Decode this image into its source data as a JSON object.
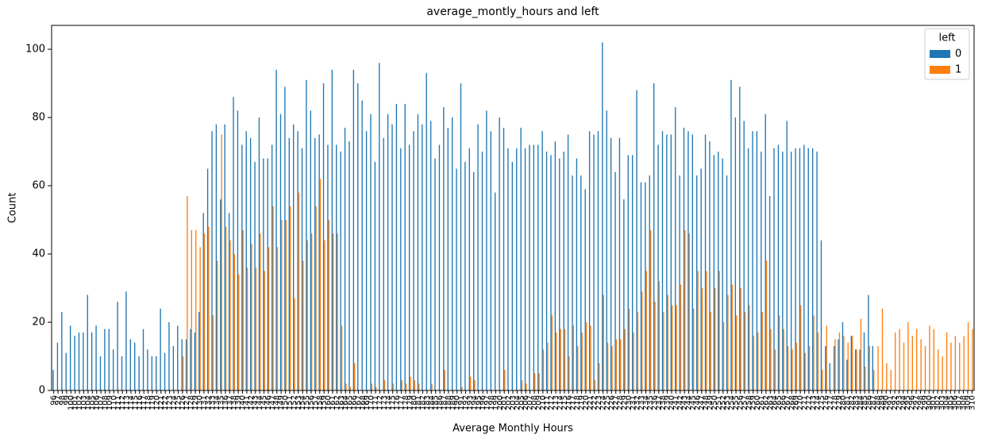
{
  "chart_data": {
    "type": "bar",
    "title": "average_montly_hours and left",
    "x_label": "Average Monthly Hours",
    "y_label": "Count",
    "legend_title": "left",
    "legend_position": "upper right",
    "ylim": [
      0,
      107
    ],
    "yticks": [
      0,
      20,
      40,
      60,
      80,
      100
    ],
    "categories": [
      96,
      97,
      98,
      99,
      100,
      101,
      102,
      103,
      104,
      105,
      106,
      107,
      108,
      109,
      110,
      111,
      112,
      113,
      114,
      115,
      116,
      117,
      118,
      119,
      120,
      121,
      122,
      123,
      124,
      125,
      126,
      127,
      128,
      129,
      130,
      131,
      132,
      133,
      134,
      135,
      136,
      137,
      138,
      139,
      140,
      141,
      142,
      143,
      144,
      145,
      146,
      147,
      148,
      149,
      150,
      151,
      152,
      153,
      154,
      155,
      156,
      157,
      158,
      159,
      160,
      161,
      162,
      163,
      164,
      165,
      166,
      167,
      168,
      169,
      170,
      171,
      172,
      173,
      174,
      175,
      176,
      177,
      178,
      179,
      180,
      181,
      182,
      183,
      184,
      185,
      186,
      187,
      188,
      189,
      190,
      191,
      192,
      193,
      194,
      195,
      196,
      197,
      198,
      199,
      200,
      201,
      202,
      203,
      204,
      205,
      206,
      207,
      208,
      209,
      210,
      211,
      212,
      213,
      214,
      215,
      216,
      217,
      218,
      219,
      220,
      221,
      222,
      223,
      224,
      225,
      226,
      227,
      228,
      229,
      230,
      231,
      232,
      233,
      234,
      235,
      236,
      237,
      238,
      239,
      240,
      241,
      242,
      243,
      244,
      245,
      246,
      247,
      248,
      249,
      250,
      251,
      252,
      253,
      254,
      255,
      256,
      257,
      258,
      259,
      260,
      261,
      262,
      263,
      264,
      265,
      266,
      267,
      268,
      269,
      270,
      271,
      272,
      273,
      274,
      275,
      276,
      277,
      278,
      279,
      280,
      281,
      282,
      283,
      284,
      285,
      286,
      287,
      288,
      289,
      290,
      291,
      292,
      293,
      294,
      295,
      296,
      297,
      298,
      299,
      300,
      301,
      302,
      303,
      304,
      305,
      306,
      307,
      308,
      309,
      310
    ],
    "series": [
      {
        "name": "0",
        "color": "#1f77b4",
        "values": [
          6,
          14,
          23,
          11,
          19,
          16,
          17,
          17,
          28,
          17,
          19,
          10,
          18,
          18,
          12,
          26,
          10,
          29,
          15,
          14,
          10,
          18,
          12,
          10,
          10,
          24,
          11,
          20,
          13,
          19,
          15,
          15,
          18,
          17,
          23,
          52,
          65,
          76,
          78,
          56,
          78,
          52,
          86,
          82,
          72,
          76,
          74,
          67,
          80,
          68,
          68,
          72,
          94,
          81,
          89,
          74,
          78,
          76,
          71,
          91,
          82,
          74,
          75,
          90,
          72,
          94,
          72,
          70,
          77,
          73,
          94,
          90,
          85,
          76,
          81,
          67,
          96,
          74,
          81,
          78,
          84,
          71,
          84,
          72,
          76,
          81,
          78,
          93,
          79,
          68,
          72,
          83,
          77,
          80,
          65,
          90,
          67,
          71,
          64,
          78,
          70,
          82,
          76,
          58,
          80,
          77,
          71,
          67,
          71,
          77,
          71,
          72,
          72,
          72,
          76,
          70,
          69,
          73,
          68,
          70,
          75,
          63,
          68,
          63,
          59,
          76,
          75,
          76,
          102,
          82,
          74,
          64,
          74,
          56,
          69,
          69,
          88,
          61,
          61,
          63,
          90,
          72,
          76,
          75,
          75,
          83,
          63,
          77,
          76,
          75,
          63,
          65,
          75,
          73,
          69,
          70,
          68,
          63,
          91,
          80,
          89,
          79,
          71,
          76,
          76,
          70,
          81,
          57,
          71,
          72,
          70,
          79,
          70,
          71,
          71,
          72,
          71,
          71,
          70,
          44,
          13,
          8,
          13,
          15,
          20,
          9,
          16,
          12,
          12,
          17,
          28,
          13,
          0,
          0,
          0,
          0,
          0,
          0,
          0,
          0,
          0,
          0,
          0,
          0,
          0,
          0,
          0,
          0,
          0,
          0,
          0,
          0,
          0,
          0,
          0
        ]
      },
      {
        "name": "1",
        "color": "#ff7f0e",
        "values": [
          0,
          0,
          0,
          0,
          0,
          0,
          0,
          0,
          0,
          0,
          0,
          0,
          0,
          0,
          0,
          0,
          0,
          0,
          0,
          0,
          0,
          0,
          0,
          0,
          0,
          0,
          0,
          0,
          0,
          0,
          10,
          57,
          47,
          47,
          42,
          46,
          48,
          22,
          38,
          75,
          48,
          44,
          40,
          34,
          47,
          36,
          43,
          36,
          46,
          35,
          42,
          54,
          42,
          50,
          50,
          54,
          27,
          58,
          38,
          44,
          46,
          54,
          62,
          44,
          50,
          46,
          46,
          19,
          2,
          1,
          8,
          0,
          0,
          0,
          2,
          1,
          0,
          3,
          0,
          2,
          0,
          3,
          2,
          4,
          3,
          2,
          0,
          0,
          2,
          0,
          0,
          6,
          0,
          0,
          0,
          1,
          0,
          4,
          3,
          0,
          0,
          0,
          0,
          0,
          0,
          6,
          0,
          0,
          0,
          3,
          2,
          0,
          5,
          5,
          12,
          14,
          22,
          17,
          18,
          18,
          10,
          19,
          13,
          17,
          20,
          19,
          3,
          8,
          28,
          14,
          13,
          15,
          15,
          18,
          24,
          17,
          23,
          29,
          35,
          47,
          26,
          32,
          23,
          28,
          25,
          25,
          31,
          47,
          46,
          24,
          35,
          30,
          35,
          23,
          30,
          35,
          20,
          28,
          31,
          22,
          30,
          23,
          25,
          16,
          17,
          23,
          38,
          18,
          12,
          22,
          18,
          13,
          12,
          14,
          25,
          11,
          13,
          22,
          17,
          6,
          19,
          0,
          15,
          17,
          16,
          14,
          16,
          12,
          21,
          7,
          13,
          6,
          13,
          24,
          8,
          6,
          17,
          18,
          14,
          20,
          16,
          18,
          15,
          13,
          19,
          18,
          12,
          10,
          17,
          14,
          16,
          14,
          16,
          20,
          18
        ]
      }
    ]
  }
}
